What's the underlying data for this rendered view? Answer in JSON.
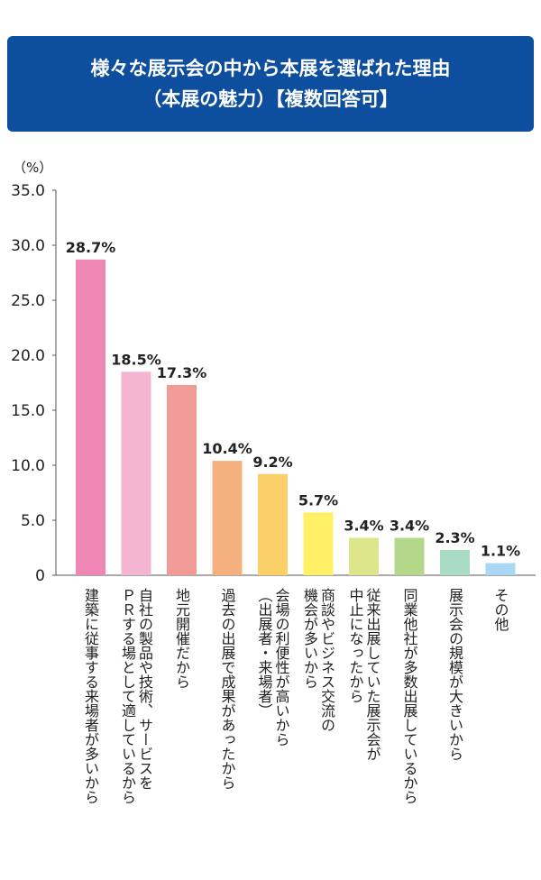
{
  "chart_data": {
    "type": "bar",
    "title_lines": [
      "様々な展示会の中から本展を選ばれた理由",
      "（本展の魅力）【複数回答可】"
    ],
    "unit_label": "（%）",
    "ylim": [
      0,
      35
    ],
    "yticks": [
      "35.0",
      "30.0",
      "25.0",
      "20.0",
      "15.0",
      "10.0",
      "5.0",
      "0"
    ],
    "ytick_values": [
      35,
      30,
      25,
      20,
      15,
      10,
      5,
      0
    ],
    "grid": false,
    "categories": [
      [
        "建築に従事する来場者が多いから"
      ],
      [
        "自社の製品や技術、サービスを",
        "ＰＲする場として適しているから"
      ],
      [
        "地元開催だから"
      ],
      [
        "過去の出展で成果があったから"
      ],
      [
        "会場の利便性が高いから",
        "（出展者・来場者）"
      ],
      [
        "商談やビジネス交流の",
        "機会が多いから"
      ],
      [
        "従来出展していた展示会が",
        "中止になったから"
      ],
      [
        "同業他社が多数出展しているから"
      ],
      [
        "展示会の規模が大きいから"
      ],
      [
        "その他"
      ]
    ],
    "values": [
      28.7,
      18.5,
      17.3,
      10.4,
      9.2,
      5.7,
      3.4,
      3.4,
      2.3,
      1.1
    ],
    "value_labels": [
      "28.7%",
      "18.5%",
      "17.3%",
      "10.4%",
      "9.2%",
      "5.7%",
      "3.4%",
      "3.4%",
      "2.3%",
      "1.1%"
    ],
    "colors": [
      "#ee87b4",
      "#f4b5d2",
      "#f19b96",
      "#f4b07e",
      "#fcd068",
      "#fff066",
      "#dde68a",
      "#b3d88a",
      "#a8dcc4",
      "#a8d8f4"
    ]
  }
}
